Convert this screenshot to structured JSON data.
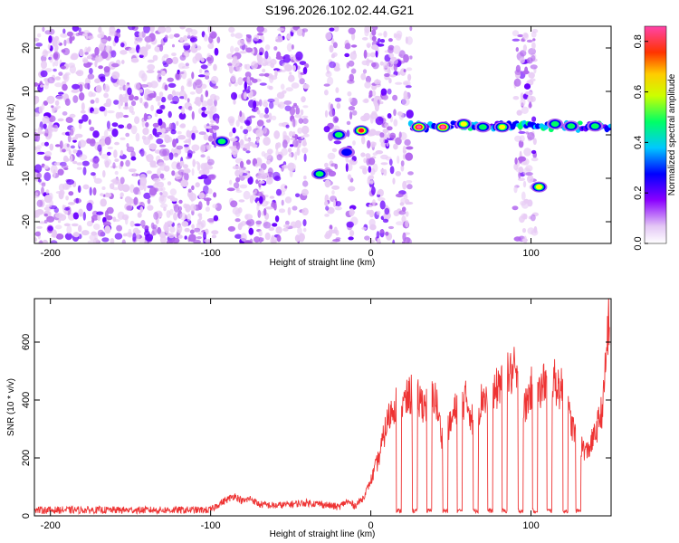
{
  "figure": {
    "title": "S196.2026.102.02.44.G21"
  },
  "chart_data": [
    {
      "type": "heatmap",
      "title": "",
      "xlabel": "Height of straight line (km)",
      "ylabel": "Frequency (Hz)",
      "xlim": [
        -210,
        150
      ],
      "ylim": [
        -25,
        25
      ],
      "xticks": [
        -200,
        -100,
        0,
        100
      ],
      "yticks": [
        -20,
        -10,
        0,
        10,
        20
      ],
      "colorbar": {
        "label": "Normalized spectral amplitude",
        "range": [
          0,
          0.86
        ],
        "ticks": [
          0.0,
          0.2,
          0.4,
          0.6,
          0.8
        ],
        "palette": [
          "#e8ccf5",
          "#b266ee",
          "#6a00ff",
          "#0000ff",
          "#00c8ff",
          "#00ff66",
          "#ffff00",
          "#ff9900",
          "#ff0033",
          "#ff55aa"
        ]
      },
      "noise_regions": [
        [
          -210,
          -95
        ],
        [
          -88,
          -40
        ],
        [
          -28,
          -20
        ],
        [
          -15,
          -10
        ],
        [
          -5,
          25
        ],
        [
          90,
          103
        ]
      ],
      "gaps": [
        [
          -95,
          -88
        ],
        [
          -40,
          -28
        ],
        [
          25,
          90
        ],
        [
          103,
          150
        ]
      ],
      "features": [
        {
          "x": -93,
          "y": -1.5,
          "amp": 0.5
        },
        {
          "x": -32,
          "y": -9,
          "amp": 0.45
        },
        {
          "x": -20,
          "y": 0,
          "amp": 0.55
        },
        {
          "x": -15,
          "y": -4,
          "amp": 0.4
        },
        {
          "x": -6,
          "y": 1,
          "amp": 0.75
        },
        {
          "x": 30,
          "y": 1.8,
          "amp": 0.85
        },
        {
          "x": 45,
          "y": 1.8,
          "amp": 0.85
        },
        {
          "x": 58,
          "y": 2.5,
          "amp": 0.6
        },
        {
          "x": 70,
          "y": 1.8,
          "amp": 0.55
        },
        {
          "x": 82,
          "y": 1.8,
          "amp": 0.65
        },
        {
          "x": 105,
          "y": -12,
          "amp": 0.6
        },
        {
          "x": 115,
          "y": 2.5,
          "amp": 0.55
        },
        {
          "x": 125,
          "y": 2,
          "amp": 0.5
        },
        {
          "x": 140,
          "y": 2,
          "amp": 0.45
        }
      ],
      "bands": [
        {
          "x0": 25,
          "x1": 150,
          "y": 2,
          "amp": 0.45
        }
      ]
    },
    {
      "type": "line",
      "title": "",
      "xlabel": "Height of straight line (km)",
      "ylabel": "SNR (10 * v/v)",
      "xlim": [
        -210,
        150
      ],
      "ylim": [
        0,
        750
      ],
      "xticks": [
        -200,
        -100,
        0,
        100
      ],
      "yticks": [
        0,
        200,
        400,
        600
      ],
      "color": "#ee3333",
      "series": [
        {
          "name": "SNR",
          "x": [
            -210,
            -100,
            -95,
            -90,
            -85,
            -80,
            -75,
            -70,
            -60,
            -50,
            -40,
            -30,
            -20,
            -15,
            -10,
            -5,
            0,
            5,
            10,
            15,
            20,
            25,
            30,
            35,
            40,
            45,
            50,
            55,
            60,
            65,
            70,
            75,
            80,
            85,
            90,
            95,
            100,
            105,
            110,
            115,
            120,
            125,
            130,
            135,
            140,
            145,
            148
          ],
          "y": [
            20,
            20,
            40,
            55,
            70,
            50,
            60,
            40,
            35,
            40,
            45,
            40,
            30,
            50,
            35,
            60,
            120,
            200,
            320,
            390,
            380,
            420,
            400,
            380,
            420,
            250,
            320,
            400,
            400,
            300,
            420,
            380,
            460,
            480,
            500,
            350,
            440,
            420,
            480,
            460,
            430,
            320,
            250,
            220,
            280,
            380,
            650
          ]
        }
      ],
      "gaps": [
        [
          16,
          19
        ],
        [
          26,
          29
        ],
        [
          35,
          38
        ],
        [
          45,
          48
        ],
        [
          54,
          57
        ],
        [
          64,
          67
        ],
        [
          73,
          76
        ],
        [
          82,
          85
        ],
        [
          92,
          95
        ],
        [
          101,
          104
        ],
        [
          110,
          113
        ],
        [
          120,
          123
        ],
        [
          128,
          131
        ]
      ]
    }
  ]
}
